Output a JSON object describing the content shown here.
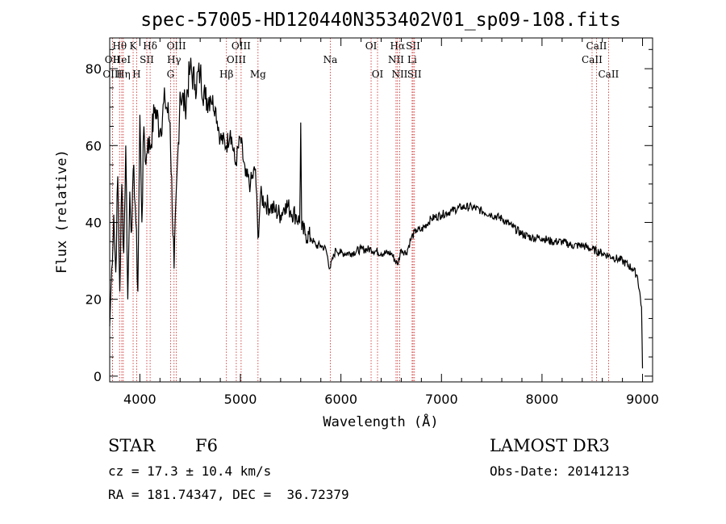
{
  "chart_data": {
    "type": "line",
    "title": "spec-57005-HD120440N353402V01_sp09-108.fits",
    "xlabel": "Wavelength (Å)",
    "ylabel": "Flux (relative)",
    "xlim": [
      3700,
      9100
    ],
    "ylim": [
      -1.5,
      88
    ],
    "xticks": [
      4000,
      5000,
      6000,
      7000,
      8000,
      9000
    ],
    "yticks": [
      0,
      20,
      40,
      60,
      80
    ],
    "grid": false,
    "series": [
      {
        "name": "flux",
        "x": [
          3700,
          3720,
          3740,
          3760,
          3780,
          3800,
          3820,
          3840,
          3860,
          3880,
          3900,
          3920,
          3940,
          3960,
          3980,
          4000,
          4020,
          4040,
          4060,
          4080,
          4100,
          4150,
          4200,
          4250,
          4300,
          4340,
          4400,
          4450,
          4500,
          4550,
          4600,
          4650,
          4700,
          4750,
          4800,
          4861,
          4900,
          4950,
          5000,
          5050,
          5100,
          5150,
          5175,
          5200,
          5250,
          5300,
          5350,
          5400,
          5450,
          5500,
          5550,
          5590,
          5600,
          5610,
          5650,
          5700,
          5750,
          5800,
          5850,
          5890,
          5950,
          6000,
          6100,
          6200,
          6300,
          6400,
          6500,
          6563,
          6600,
          6650,
          6700,
          6750,
          6800,
          6900,
          7000,
          7100,
          7200,
          7300,
          7400,
          7500,
          7600,
          7700,
          7800,
          7900,
          8000,
          8100,
          8200,
          8300,
          8400,
          8500,
          8600,
          8700,
          8800,
          8900,
          8950,
          8990,
          9000
        ],
        "values": [
          13,
          28,
          42,
          27,
          52,
          22,
          50,
          32,
          60,
          20,
          48,
          38,
          55,
          40,
          22,
          68,
          40,
          65,
          55,
          62,
          59,
          70,
          64,
          72,
          66,
          28,
          74,
          70,
          80,
          76,
          79,
          72,
          73,
          70,
          62,
          60,
          64,
          55,
          62,
          52,
          50,
          54,
          36,
          47,
          45,
          44,
          43,
          42,
          45,
          43,
          42,
          40,
          66,
          38,
          37,
          36,
          34,
          34,
          33,
          28,
          33,
          32,
          32,
          33,
          33,
          32,
          32,
          29,
          33,
          32,
          36,
          38,
          38,
          41,
          42,
          43,
          44,
          44,
          43,
          42,
          41,
          39,
          37,
          36,
          36,
          35,
          35,
          34,
          34,
          33,
          32,
          31,
          30,
          28,
          26,
          18,
          2
        ]
      }
    ],
    "annotations": {
      "spectral_lines": [
        {
          "label": "Hθ",
          "x": 3798,
          "row": 1
        },
        {
          "label": "OII",
          "x": 3727,
          "row": 2
        },
        {
          "label": "OIII",
          "x": 3727,
          "row": 3
        },
        {
          "label": "HeI",
          "x": 3820,
          "row": 2
        },
        {
          "label": "Hη",
          "x": 3835,
          "row": 3
        },
        {
          "label": "K",
          "x": 3933,
          "row": 1
        },
        {
          "label": "H",
          "x": 3968,
          "row": 3
        },
        {
          "label": "SII",
          "x": 4069,
          "row": 2
        },
        {
          "label": "Hδ",
          "x": 4102,
          "row": 1
        },
        {
          "label": "OIII",
          "x": 4363,
          "row": 1
        },
        {
          "label": "Hγ",
          "x": 4340,
          "row": 2
        },
        {
          "label": "G",
          "x": 4305,
          "row": 3
        },
        {
          "label": "Hβ",
          "x": 4861,
          "row": 3
        },
        {
          "label": "OIII",
          "x": 5007,
          "row": 1
        },
        {
          "label": "OIII",
          "x": 4959,
          "row": 2
        },
        {
          "label": "Mg",
          "x": 5175,
          "row": 3
        },
        {
          "label": "Na",
          "x": 5894,
          "row": 2
        },
        {
          "label": "OI",
          "x": 6300,
          "row": 1
        },
        {
          "label": "OI",
          "x": 6364,
          "row": 3
        },
        {
          "label": "Hα",
          "x": 6563,
          "row": 1
        },
        {
          "label": "NII",
          "x": 6548,
          "row": 2
        },
        {
          "label": "NII",
          "x": 6584,
          "row": 3
        },
        {
          "label": "SII",
          "x": 6717,
          "row": 1
        },
        {
          "label": "Li",
          "x": 6708,
          "row": 2
        },
        {
          "label": "SII",
          "x": 6731,
          "row": 3
        },
        {
          "label": "CaII",
          "x": 8542,
          "row": 1
        },
        {
          "label": "CaII",
          "x": 8498,
          "row": 2
        },
        {
          "label": "CaII",
          "x": 8662,
          "row": 3
        }
      ]
    }
  },
  "info": {
    "object_class": "STAR",
    "subclass": "F6",
    "redshift": "cz = 17.3 ± 10.4 km/s",
    "coords": "RA = 181.74347, DEC =  36.72379",
    "survey": "LAMOST DR3",
    "obs_date": "Obs-Date: 20141213"
  }
}
